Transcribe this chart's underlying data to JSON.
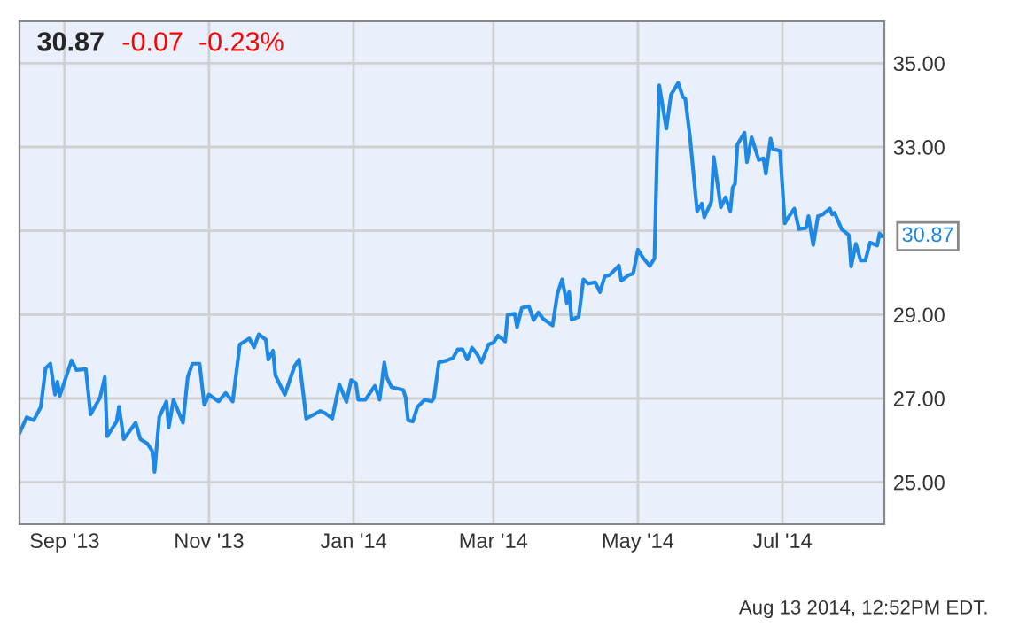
{
  "chart_data": {
    "type": "line",
    "title": "30.87",
    "subtitle": "-0.07  -0.23%",
    "x": [
      "2013-08-13",
      "2013-08-16",
      "2013-08-19",
      "2013-08-22",
      "2013-08-24",
      "2013-08-26",
      "2013-08-28",
      "2013-08-29",
      "2013-08-30",
      "2013-09-04",
      "2013-09-06",
      "2013-09-10",
      "2013-09-12",
      "2013-09-16",
      "2013-09-18",
      "2013-09-19",
      "2013-09-23",
      "2013-09-24",
      "2013-09-26",
      "2013-10-01",
      "2013-10-03",
      "2013-10-06",
      "2013-10-08",
      "2013-10-09",
      "2013-10-11",
      "2013-10-14",
      "2013-10-15",
      "2013-10-17",
      "2013-10-21",
      "2013-10-23",
      "2013-10-25",
      "2013-10-28",
      "2013-10-30",
      "2013-11-01",
      "2013-11-05",
      "2013-11-08",
      "2013-11-11",
      "2013-11-14",
      "2013-11-18",
      "2013-11-20",
      "2013-11-22",
      "2013-11-25",
      "2013-11-26",
      "2013-11-28",
      "2013-11-29",
      "2013-12-03",
      "2013-12-07",
      "2013-12-09",
      "2013-12-11",
      "2013-12-12",
      "2013-12-18",
      "2013-12-20",
      "2013-12-23",
      "2013-12-26",
      "2013-12-29",
      "2013-12-31",
      "2014-01-02",
      "2014-01-03",
      "2014-01-06",
      "2014-01-10",
      "2014-01-12",
      "2014-01-14",
      "2014-01-15",
      "2014-01-17",
      "2014-01-22",
      "2014-01-23",
      "2014-01-24",
      "2014-01-26",
      "2014-01-28",
      "2014-01-31",
      "2014-02-03",
      "2014-02-04",
      "2014-02-06",
      "2014-02-09",
      "2014-02-12",
      "2014-02-14",
      "2014-02-16",
      "2014-02-18",
      "2014-02-20",
      "2014-02-22",
      "2014-02-24",
      "2014-02-27",
      "2014-03-01",
      "2014-03-03",
      "2014-03-06",
      "2014-03-07",
      "2014-03-10",
      "2014-03-11",
      "2014-03-13",
      "2014-03-16",
      "2014-03-18",
      "2014-03-20",
      "2014-03-22",
      "2014-03-26",
      "2014-03-28",
      "2014-03-30",
      "2014-04-01",
      "2014-04-02",
      "2014-04-03",
      "2014-04-06",
      "2014-04-08",
      "2014-04-10",
      "2014-04-13",
      "2014-04-15",
      "2014-04-17",
      "2014-04-19",
      "2014-04-23",
      "2014-04-24",
      "2014-04-27",
      "2014-04-29",
      "2014-05-01",
      "2014-05-03",
      "2014-05-06",
      "2014-05-08",
      "2014-05-09",
      "2014-05-10",
      "2014-05-13",
      "2014-05-15",
      "2014-05-18",
      "2014-05-20",
      "2014-05-21",
      "2014-05-23",
      "2014-05-26",
      "2014-05-28",
      "2014-05-29",
      "2014-06-01",
      "2014-06-02",
      "2014-06-05",
      "2014-06-07",
      "2014-06-09",
      "2014-06-10",
      "2014-06-11",
      "2014-06-12",
      "2014-06-15",
      "2014-06-16",
      "2014-06-18",
      "2014-06-21",
      "2014-06-23",
      "2014-06-24",
      "2014-06-26",
      "2014-06-27",
      "2014-06-30",
      "2014-07-02",
      "2014-07-03",
      "2014-07-06",
      "2014-07-08",
      "2014-07-11",
      "2014-07-12",
      "2014-07-14",
      "2014-07-16",
      "2014-07-18",
      "2014-07-21",
      "2014-07-22",
      "2014-07-23",
      "2014-07-26",
      "2014-07-29",
      "2014-07-30",
      "2014-08-01",
      "2014-08-03",
      "2014-08-05",
      "2014-08-07",
      "2014-08-10",
      "2014-08-11",
      "2014-08-12"
    ],
    "series": [
      {
        "color": "#1e88e5",
        "values": [
          26.17,
          26.55,
          26.48,
          26.8,
          27.72,
          27.83,
          27.09,
          27.4,
          27.06,
          27.91,
          27.68,
          27.7,
          26.62,
          27.02,
          27.51,
          26.1,
          26.45,
          26.8,
          26.03,
          26.42,
          26.03,
          25.92,
          25.75,
          25.25,
          26.56,
          26.93,
          26.31,
          26.97,
          26.42,
          27.51,
          27.83,
          27.83,
          26.85,
          27.09,
          26.93,
          27.13,
          26.93,
          28.29,
          28.43,
          28.22,
          28.53,
          28.4,
          27.93,
          28.14,
          27.55,
          27.09,
          27.76,
          27.93,
          27.02,
          26.52,
          26.7,
          26.65,
          26.52,
          27.34,
          26.92,
          27.44,
          27.37,
          26.97,
          26.97,
          27.3,
          26.97,
          27.86,
          27.51,
          27.27,
          27.2,
          27.02,
          26.48,
          26.45,
          26.8,
          26.97,
          26.93,
          27.02,
          27.86,
          27.9,
          27.97,
          28.17,
          28.17,
          27.93,
          28.21,
          28.07,
          27.86,
          28.29,
          28.33,
          28.5,
          28.36,
          28.99,
          29.02,
          28.7,
          29.16,
          29.2,
          28.87,
          29.05,
          28.9,
          28.74,
          29.49,
          29.84,
          29.28,
          29.54,
          28.88,
          28.95,
          29.84,
          29.74,
          29.77,
          29.54,
          29.91,
          29.94,
          30.17,
          29.81,
          29.94,
          29.98,
          30.55,
          30.37,
          30.16,
          30.34,
          32.67,
          34.47,
          33.44,
          34.25,
          34.53,
          34.19,
          34.15,
          33.23,
          31.47,
          31.65,
          31.32,
          31.7,
          32.76,
          31.56,
          31.8,
          31.47,
          32.03,
          32.12,
          33.06,
          33.34,
          32.64,
          33.23,
          32.69,
          32.73,
          32.36,
          33.2,
          32.95,
          32.91,
          31.18,
          31.28,
          31.53,
          31.04,
          31.07,
          31.35,
          30.66,
          31.35,
          31.39,
          31.53,
          31.39,
          31.43,
          31.04,
          30.9,
          30.15,
          30.69,
          30.29,
          30.29,
          30.72,
          30.65,
          30.94,
          30.87
        ]
      }
    ],
    "xlim": [
      "2013-08-13",
      "2014-08-13"
    ],
    "xticks": [
      {
        "value": "2013-09-01",
        "label": "Sep '13"
      },
      {
        "value": "2013-11-01",
        "label": "Nov '13"
      },
      {
        "value": "2014-01-01",
        "label": "Jan '14"
      },
      {
        "value": "2014-03-01",
        "label": "Mar '14"
      },
      {
        "value": "2014-05-01",
        "label": "May '14"
      },
      {
        "value": "2014-07-01",
        "label": "Jul '14"
      }
    ],
    "ylim": [
      24,
      36
    ],
    "yticks": [
      {
        "value": 25,
        "label": "25.00"
      },
      {
        "value": 27,
        "label": "27.00"
      },
      {
        "value": 29,
        "label": "29.00"
      },
      {
        "value": 31,
        "label": null
      },
      {
        "value": 33,
        "label": "33.00"
      },
      {
        "value": 35,
        "label": "35.00"
      }
    ],
    "grid": true,
    "legend": false,
    "annotations": [
      {
        "text": "30.87",
        "x": "2014-08-12",
        "y": 30.87
      },
      "Aug 13 2014, 12:52PM EDT."
    ]
  }
}
